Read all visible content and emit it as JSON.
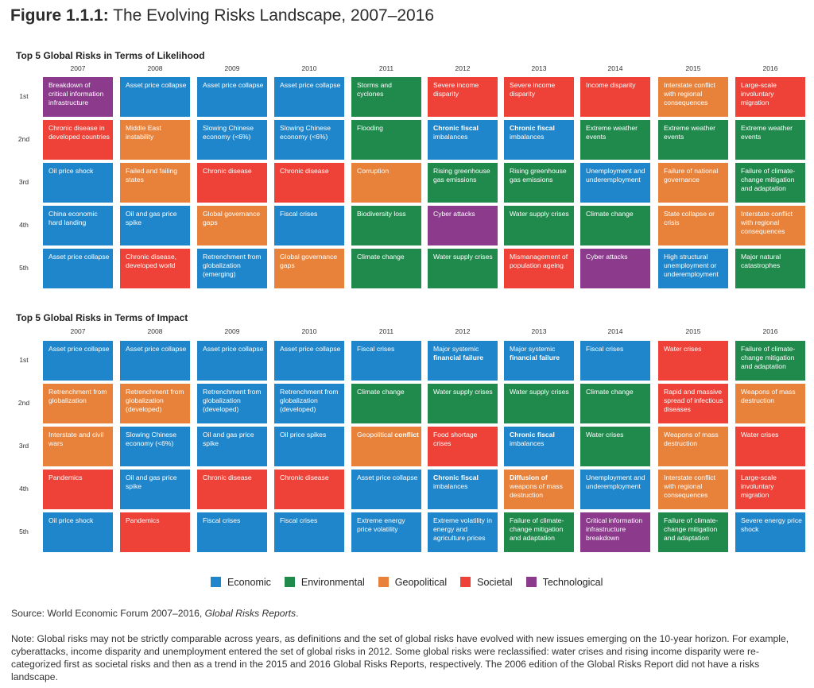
{
  "figure": {
    "title_prefix": "Figure 1.1.1:",
    "title_text": " The Evolving Risks Landscape, 2007–2016"
  },
  "years": [
    "2007",
    "2008",
    "2009",
    "2010",
    "2011",
    "2012",
    "2013",
    "2014",
    "2015",
    "2016"
  ],
  "ranks": [
    "1st",
    "2nd",
    "3rd",
    "4th",
    "5th"
  ],
  "likelihood": {
    "title": "Top 5 Global Risks in Terms of Likelihood",
    "grid": [
      [
        {
          "text": "Breakdown of critical information infrastructure",
          "cat": "Technological"
        },
        {
          "text": "Chronic disease in developed countries",
          "cat": "Societal"
        },
        {
          "text": "Oil price shock",
          "cat": "Economic"
        },
        {
          "text": "China economic hard landing",
          "cat": "Economic"
        },
        {
          "text": "Asset price collapse",
          "cat": "Economic"
        }
      ],
      [
        {
          "text": "Asset price collapse",
          "cat": "Economic"
        },
        {
          "text": "Middle East instability",
          "cat": "Geopolitical"
        },
        {
          "text": "Failed and failing states",
          "cat": "Geopolitical"
        },
        {
          "text": "Oil and gas price spike",
          "cat": "Economic"
        },
        {
          "text": "Chronic disease, developed world",
          "cat": "Societal"
        }
      ],
      [
        {
          "text": "Asset price collapse",
          "cat": "Economic"
        },
        {
          "text": "Slowing Chinese economy (<6%)",
          "cat": "Economic"
        },
        {
          "text": "Chronic disease",
          "cat": "Societal"
        },
        {
          "text": "Global governance gaps",
          "cat": "Geopolitical"
        },
        {
          "text": "Retrenchment from globalization (emerging)",
          "cat": "Economic"
        }
      ],
      [
        {
          "text": "Asset price collapse",
          "cat": "Economic"
        },
        {
          "text": "Slowing Chinese economy (<6%)",
          "cat": "Economic"
        },
        {
          "text": "Chronic disease",
          "cat": "Societal"
        },
        {
          "text": "Fiscal crises",
          "cat": "Economic"
        },
        {
          "text": "Global governance gaps",
          "cat": "Geopolitical"
        }
      ],
      [
        {
          "text": "Storms and cyclones",
          "cat": "Environmental"
        },
        {
          "text": "Flooding",
          "cat": "Environmental"
        },
        {
          "text": "Corruption",
          "cat": "Geopolitical"
        },
        {
          "text": "Biodiversity loss",
          "cat": "Environmental"
        },
        {
          "text": "Climate change",
          "cat": "Environmental"
        }
      ],
      [
        {
          "text": "Severe income disparity",
          "cat": "Societal"
        },
        {
          "text": "imbalances",
          "bold": "Chronic fiscal",
          "cat": "Economic"
        },
        {
          "text": "Rising greenhouse gas emissions",
          "cat": "Environmental"
        },
        {
          "text": "Cyber attacks",
          "cat": "Technological"
        },
        {
          "text": "Water supply crises",
          "cat": "Environmental"
        }
      ],
      [
        {
          "text": "Severe income disparity",
          "cat": "Societal"
        },
        {
          "text": "imbalances",
          "bold": "Chronic fiscal",
          "cat": "Economic"
        },
        {
          "text": "Rising greenhouse gas emissions",
          "cat": "Environmental"
        },
        {
          "text": "Water supply crises",
          "cat": "Environmental"
        },
        {
          "text": "Mismanagement of population ageing",
          "cat": "Societal"
        }
      ],
      [
        {
          "text": "Income disparity",
          "cat": "Societal"
        },
        {
          "text": "Extreme weather events",
          "cat": "Environmental"
        },
        {
          "text": "Unemployment and underemployment",
          "cat": "Economic"
        },
        {
          "text": "Climate change",
          "cat": "Environmental"
        },
        {
          "text": "Cyber attacks",
          "cat": "Technological"
        }
      ],
      [
        {
          "text": "Interstate conflict with regional consequences",
          "cat": "Geopolitical"
        },
        {
          "text": "Extreme weather events",
          "cat": "Environmental"
        },
        {
          "text": "Failure of national governance",
          "cat": "Geopolitical"
        },
        {
          "text": "State collapse or crisis",
          "cat": "Geopolitical"
        },
        {
          "text": "High structural unemployment or underemployment",
          "cat": "Economic"
        }
      ],
      [
        {
          "text": "Large-scale involuntary migration",
          "cat": "Societal"
        },
        {
          "text": "Extreme weather events",
          "cat": "Environmental"
        },
        {
          "text": "Failure of climate-change mitigation and adaptation",
          "cat": "Environmental"
        },
        {
          "text": "Interstate conflict with regional consequences",
          "cat": "Geopolitical"
        },
        {
          "text": "Major natural catastrophes",
          "cat": "Environmental"
        }
      ]
    ]
  },
  "impact": {
    "title": "Top 5 Global Risks in Terms of Impact",
    "grid": [
      [
        {
          "text": "Asset price collapse",
          "cat": "Economic"
        },
        {
          "text": "Retrenchment from globalization",
          "cat": "Geopolitical"
        },
        {
          "text": "Interstate and civil wars",
          "cat": "Geopolitical"
        },
        {
          "text": "Pandemics",
          "cat": "Societal"
        },
        {
          "text": "Oil price shock",
          "cat": "Economic"
        }
      ],
      [
        {
          "text": "Asset price collapse",
          "cat": "Economic"
        },
        {
          "text": "Retrenchment from globalization (developed)",
          "cat": "Geopolitical"
        },
        {
          "text": "Slowing Chinese economy (<6%)",
          "cat": "Economic"
        },
        {
          "text": "Oil and gas price spike",
          "cat": "Economic"
        },
        {
          "text": "Pandemics",
          "cat": "Societal"
        }
      ],
      [
        {
          "text": "Asset price collapse",
          "cat": "Economic"
        },
        {
          "text": "Retrenchment from globalization (developed)",
          "cat": "Economic"
        },
        {
          "text": "Oil and gas price spike",
          "cat": "Economic"
        },
        {
          "text": "Chronic disease",
          "cat": "Societal"
        },
        {
          "text": "Fiscal crises",
          "cat": "Economic"
        }
      ],
      [
        {
          "text": "Asset price collapse",
          "cat": "Economic"
        },
        {
          "text": "Retrenchment from globalization (developed)",
          "cat": "Economic"
        },
        {
          "text": "Oil price spikes",
          "cat": "Economic"
        },
        {
          "text": "Chronic disease",
          "cat": "Societal"
        },
        {
          "text": "Fiscal crises",
          "cat": "Economic"
        }
      ],
      [
        {
          "text": "Fiscal crises",
          "cat": "Economic"
        },
        {
          "text": "Climate change",
          "cat": "Environmental"
        },
        {
          "text": "Geopolitical",
          "bold_after": "conflict",
          "cat": "Geopolitical"
        },
        {
          "text": "Asset price collapse",
          "cat": "Economic"
        },
        {
          "text": "Extreme energy price volatility",
          "cat": "Economic"
        }
      ],
      [
        {
          "text": "Major systemic",
          "bold_after": "financial failure",
          "cat": "Economic"
        },
        {
          "text": "Water supply crises",
          "cat": "Environmental"
        },
        {
          "text": "Food shortage crises",
          "cat": "Societal"
        },
        {
          "text": "imbalances",
          "bold": "Chronic fiscal",
          "cat": "Economic"
        },
        {
          "text": "Extreme volatility in energy and agriculture prices",
          "cat": "Economic"
        }
      ],
      [
        {
          "text": "Major systemic",
          "bold_after": "financial failure",
          "cat": "Economic"
        },
        {
          "text": "Water supply crises",
          "cat": "Environmental"
        },
        {
          "text": "imbalances",
          "bold": "Chronic fiscal",
          "cat": "Economic"
        },
        {
          "text": "weapons of mass destruction",
          "bold": "Diffusion of",
          "cat": "Geopolitical"
        },
        {
          "text": "Failure of climate-change mitigation and adaptation",
          "cat": "Environmental"
        }
      ],
      [
        {
          "text": "Fiscal crises",
          "cat": "Economic"
        },
        {
          "text": "Climate change",
          "cat": "Environmental"
        },
        {
          "text": "Water crises",
          "cat": "Environmental"
        },
        {
          "text": "Unemployment and underemployment",
          "cat": "Economic"
        },
        {
          "text": "Critical information infrastructure breakdown",
          "cat": "Technological"
        }
      ],
      [
        {
          "text": "Water crises",
          "cat": "Societal"
        },
        {
          "text": "Rapid and massive spread of infectious diseases",
          "cat": "Societal"
        },
        {
          "text": "Weapons of mass destruction",
          "cat": "Geopolitical"
        },
        {
          "text": "Interstate conflict with regional consequences",
          "cat": "Geopolitical"
        },
        {
          "text": "Failure of climate-change mitigation and adaptation",
          "cat": "Environmental"
        }
      ],
      [
        {
          "text": "Failure of climate-change mitigation and adaptation",
          "cat": "Environmental"
        },
        {
          "text": "Weapons of mass destruction",
          "cat": "Geopolitical"
        },
        {
          "text": "Water crises",
          "cat": "Societal"
        },
        {
          "text": "Large-scale involuntary migration",
          "cat": "Societal"
        },
        {
          "text": "Severe energy price shock",
          "cat": "Economic"
        }
      ]
    ]
  },
  "legend": [
    {
      "label": "Economic",
      "color": "#1f86cb"
    },
    {
      "label": "Environmental",
      "color": "#1f8a4c"
    },
    {
      "label": "Geopolitical",
      "color": "#e8823a"
    },
    {
      "label": "Societal",
      "color": "#ee4137"
    },
    {
      "label": "Technological",
      "color": "#8b3a8c"
    }
  ],
  "source": {
    "prefix": "Source: World Economic Forum 2007–2016, ",
    "italic": "Global Risks Reports",
    "suffix": "."
  },
  "note": "Note: Global risks may not be strictly comparable across years, as definitions and the set of global risks have evolved with new issues emerging on the 10-year horizon. For example, cyberattacks, income disparity and unemployment entered the set of global risks in 2012. Some global risks were reclassified: water crises and rising income disparity were re-categorized first as societal risks and then as a trend in the 2015 and 2016 Global Risks Reports, respectively. The 2006 edition of the Global Risks Report did not have a risks landscape."
}
